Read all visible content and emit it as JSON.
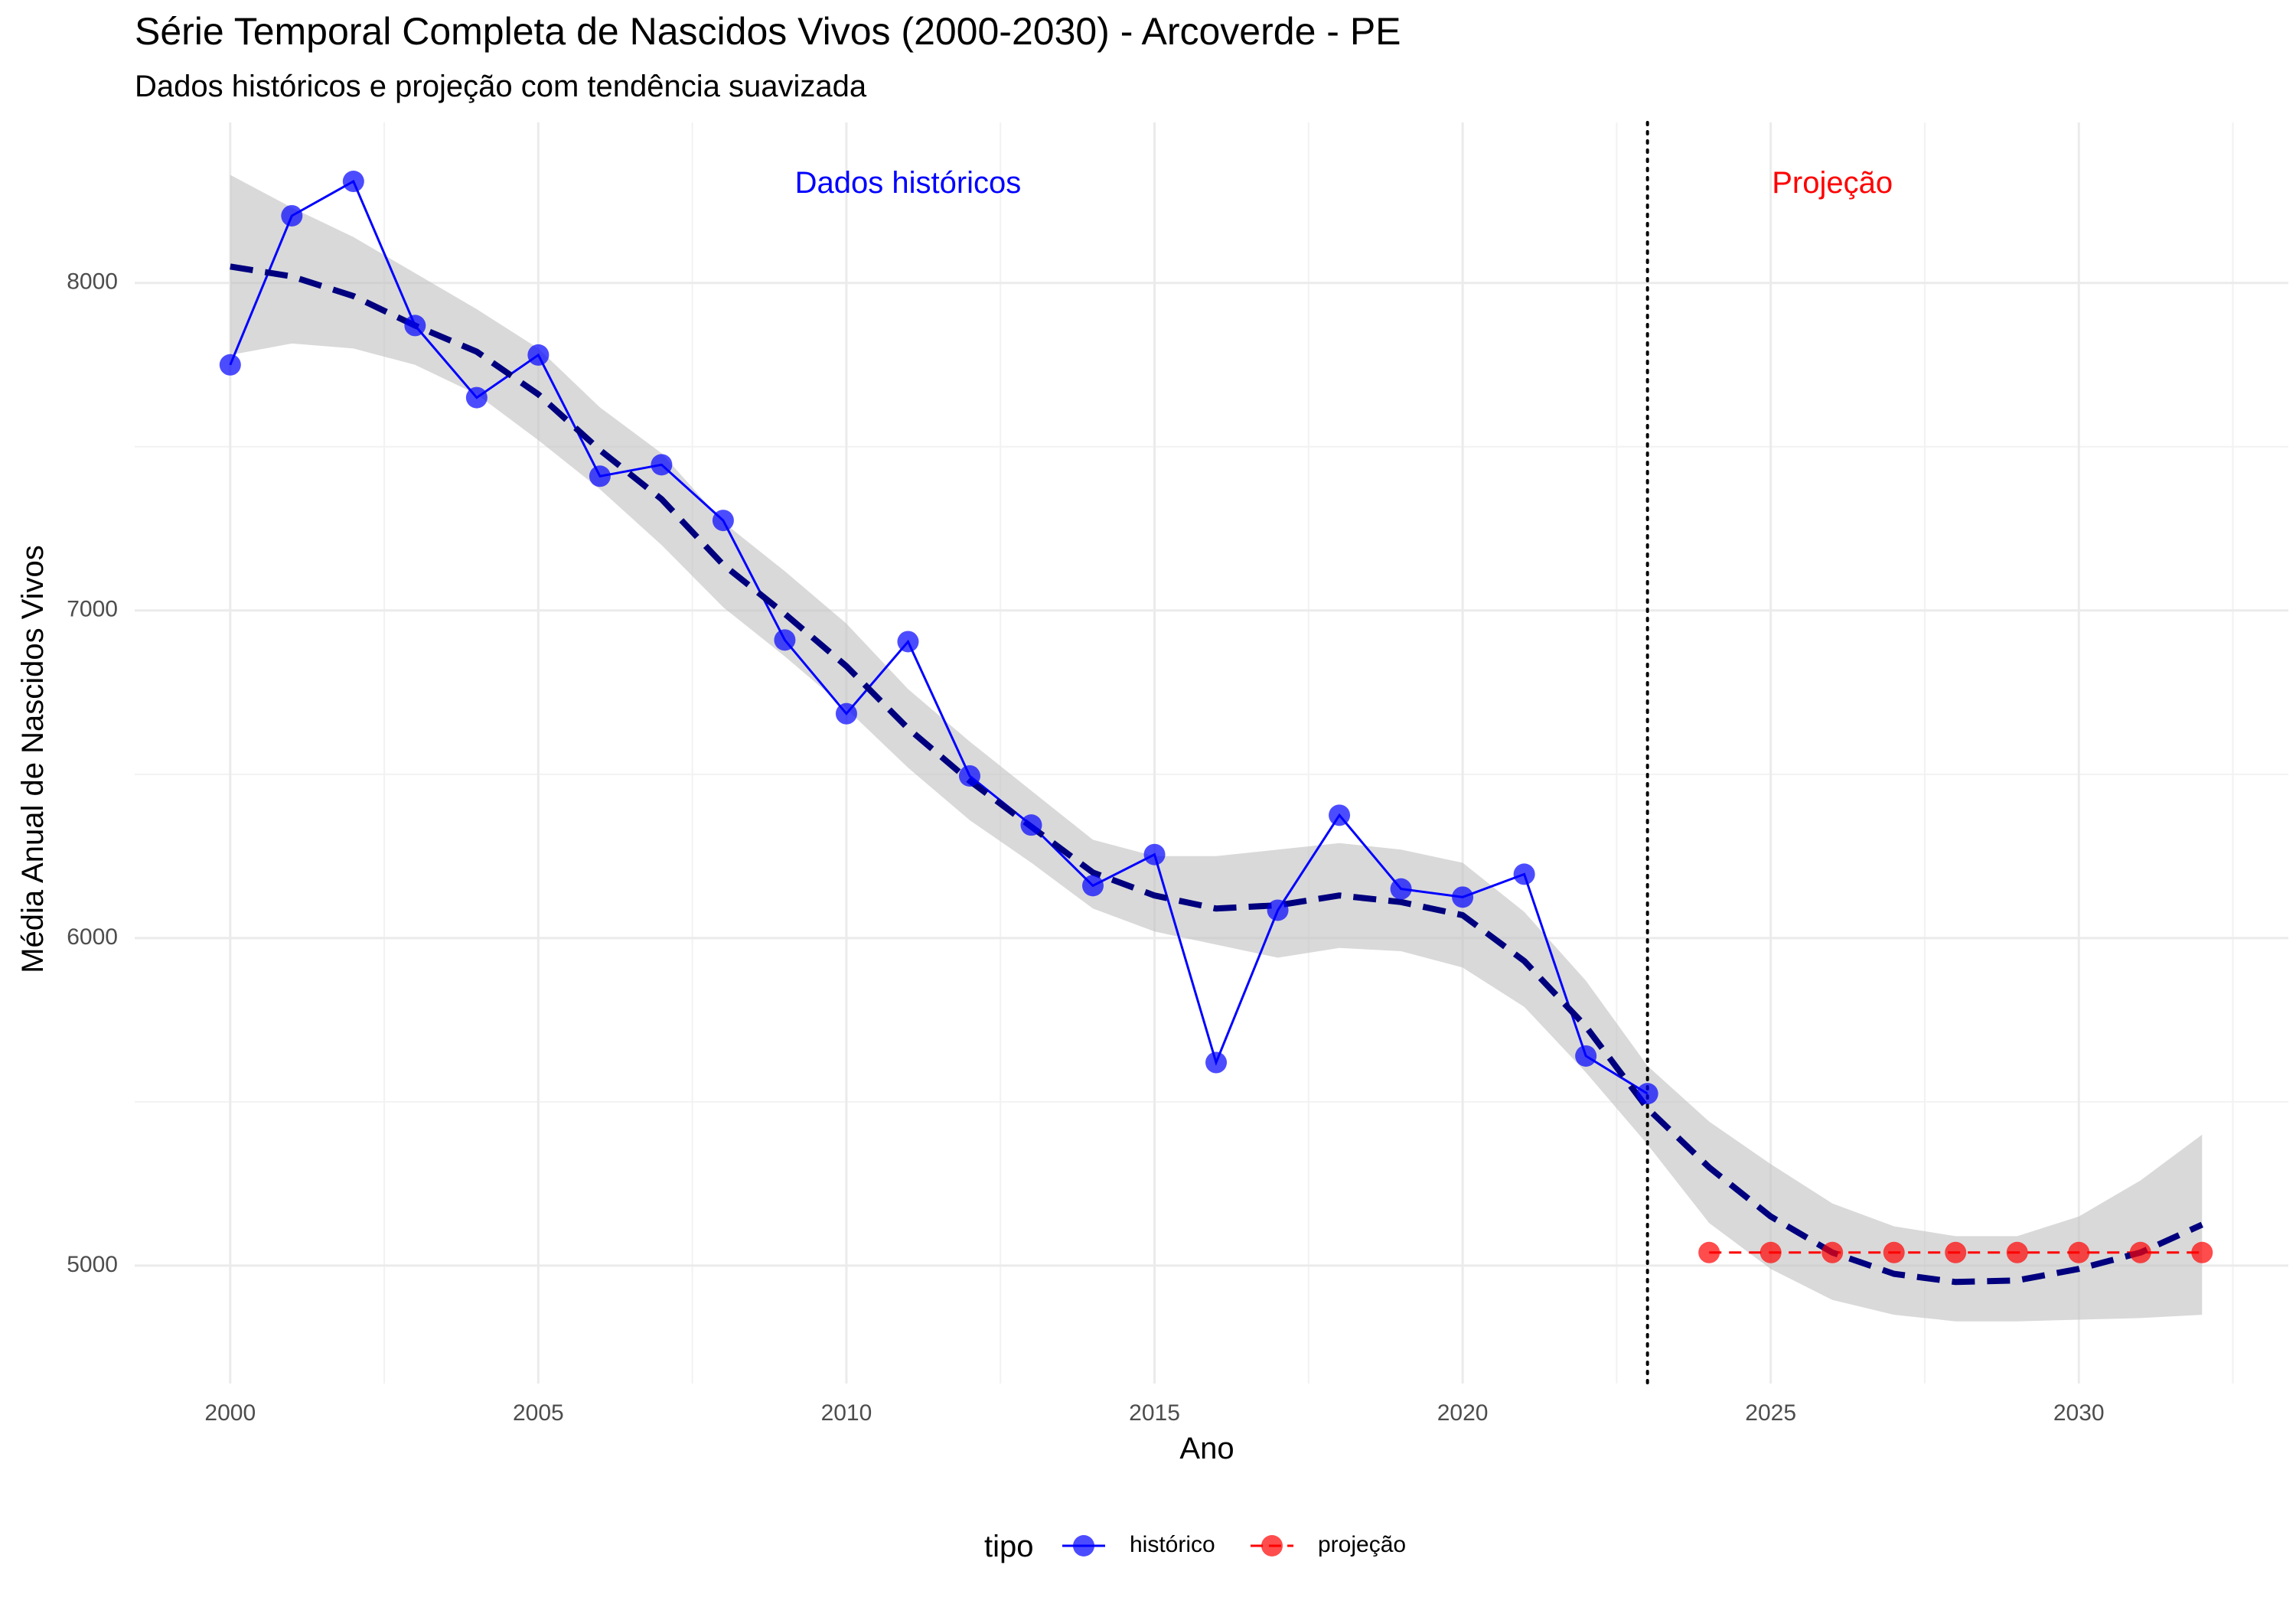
{
  "chart_data": {
    "type": "line",
    "title": "Série Temporal Completa de Nascidos Vivos (2000-2030) -  Arcoverde - PE",
    "subtitle": "Dados históricos e projeção com tendência suavizada",
    "xlabel": "Ano",
    "ylabel": "Média Anual de Nascidos Vivos",
    "xlim": [
      1998.45,
      2033.4
    ],
    "ylim": [
      4640,
      8490
    ],
    "x_ticks": [
      2000,
      2005,
      2010,
      2015,
      2020,
      2025,
      2030
    ],
    "x_tick_labels": [
      "2000",
      "2005",
      "2010",
      "2015",
      "2020",
      "2025",
      "2030"
    ],
    "y_ticks": [
      5000,
      6000,
      7000,
      8000
    ],
    "y_tick_labels": [
      "5000",
      "6000",
      "7000",
      "8000"
    ],
    "grid": true,
    "legend": {
      "title": "tipo",
      "position": "bottom",
      "entries": [
        "histórico",
        "projeção"
      ]
    },
    "divider_x": 2023,
    "annotations": [
      {
        "text": "Dados históricos",
        "x": 2011,
        "y": 8300,
        "color": "#0000ff"
      },
      {
        "text": "Projeção",
        "x": 2026,
        "y": 8300,
        "color": "#ff0000"
      }
    ],
    "series": [
      {
        "name": "histórico",
        "color": "#0000ff",
        "x": [
          2000,
          2001,
          2002,
          2003,
          2004,
          2005,
          2006,
          2007,
          2008,
          2009,
          2010,
          2011,
          2012,
          2013,
          2014,
          2015,
          2016,
          2017,
          2018,
          2019,
          2020,
          2021,
          2022,
          2023
        ],
        "y": [
          7750,
          8205,
          8310,
          7870,
          7650,
          7780,
          7410,
          7445,
          7275,
          6910,
          6685,
          6905,
          6495,
          6345,
          6160,
          6255,
          5620,
          6085,
          6375,
          6150,
          6125,
          6195,
          5640,
          5525
        ]
      },
      {
        "name": "projeção",
        "color": "#ff0000",
        "x": [
          2024,
          2025,
          2026,
          2027,
          2028,
          2029,
          2030,
          2031,
          2032
        ],
        "y": [
          5040,
          5040,
          5040,
          5040,
          5040,
          5040,
          5040,
          5040,
          5040
        ]
      }
    ],
    "trend": {
      "color": "#00007f",
      "band_color": "#bfbfbf",
      "x": [
        2000,
        2001,
        2002,
        2003,
        2004,
        2005,
        2006,
        2007,
        2008,
        2009,
        2010,
        2011,
        2012,
        2013,
        2014,
        2015,
        2016,
        2017,
        2018,
        2019,
        2020,
        2021,
        2022,
        2023,
        2024,
        2025,
        2026,
        2027,
        2028,
        2029,
        2030,
        2031,
        2032
      ],
      "y": [
        8050,
        8020,
        7960,
        7870,
        7790,
        7660,
        7490,
        7340,
        7140,
        6990,
        6830,
        6640,
        6480,
        6340,
        6200,
        6130,
        6090,
        6100,
        6130,
        6110,
        6070,
        5930,
        5730,
        5480,
        5300,
        5150,
        5040,
        4975,
        4950,
        4955,
        4990,
        5040,
        5125
      ],
      "lower": [
        7780,
        7815,
        7800,
        7750,
        7660,
        7520,
        7370,
        7200,
        7010,
        6860,
        6700,
        6520,
        6360,
        6230,
        6090,
        6020,
        5980,
        5940,
        5970,
        5960,
        5910,
        5790,
        5590,
        5370,
        5130,
        4990,
        4895,
        4850,
        4830,
        4830,
        4835,
        4840,
        4850
      ],
      "upper": [
        8330,
        8230,
        8140,
        8030,
        7920,
        7800,
        7620,
        7480,
        7270,
        7120,
        6960,
        6760,
        6600,
        6450,
        6300,
        6250,
        6250,
        6270,
        6290,
        6270,
        6230,
        6080,
        5870,
        5610,
        5440,
        5310,
        5190,
        5120,
        5090,
        5090,
        5150,
        5260,
        5400
      ]
    }
  }
}
